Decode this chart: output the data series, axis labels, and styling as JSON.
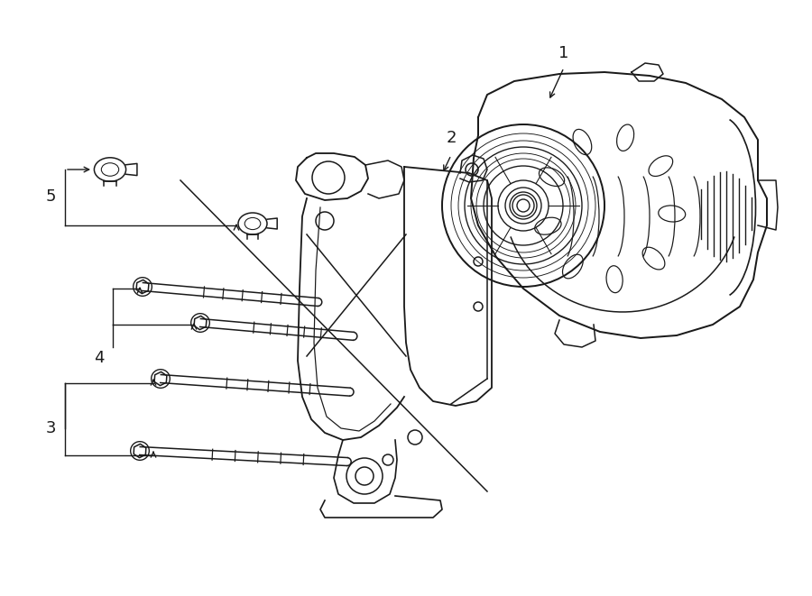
{
  "bg_color": "#ffffff",
  "line_color": "#1a1a1a",
  "fig_width": 9.0,
  "fig_height": 6.61,
  "dpi": 100,
  "label_fontsize": 13,
  "lw": 1.1
}
